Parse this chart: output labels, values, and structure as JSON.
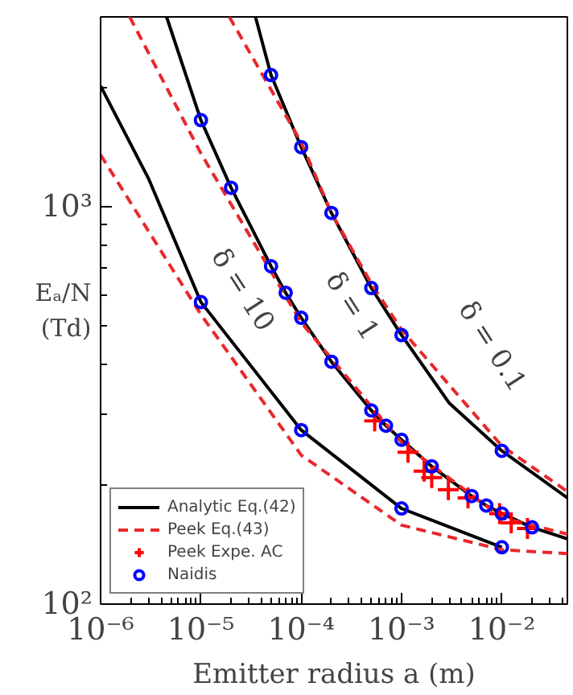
{
  "chart_data": {
    "type": "line",
    "xlabel": "Emitter radius a (m)",
    "ylabel": "Eₐ/N (Td)",
    "log": "xy",
    "grid": false,
    "legend": "bottom left",
    "xlim": [
      1e-06,
      0.045
    ],
    "ylim": [
      100,
      3000
    ],
    "xticks": [
      {
        "value": 1e-06,
        "label": "10⁻⁶"
      },
      {
        "value": 1e-05,
        "label": "10⁻⁵"
      },
      {
        "value": 0.0001,
        "label": "10⁻⁴"
      },
      {
        "value": 0.001,
        "label": "10⁻³"
      },
      {
        "value": 0.01,
        "label": "10⁻²"
      }
    ],
    "yticks": [
      {
        "value": 100,
        "label": "10²"
      },
      {
        "value": 1000,
        "label": "10³"
      }
    ],
    "series": [
      {
        "name": "Analytic Eq.(42)",
        "line_style": "solid",
        "color": "#000000",
        "x": [
          1e-06,
          3e-06,
          1e-05,
          0.0001,
          0.001,
          0.01
        ],
        "values": [
          2010,
          1177,
          575,
          274,
          174,
          139
        ]
      },
      {
        "line_style": "solid",
        "color": "#000000",
        "x": [
          4.55e-06,
          1e-05,
          2e-05,
          5e-05,
          7e-05,
          0.0001,
          0.0002,
          0.0005,
          0.0007,
          0.001,
          0.002,
          0.005,
          0.007,
          0.01,
          0.02,
          0.045
        ],
        "values": [
          3000,
          1650,
          1115,
          708,
          607,
          525,
          407,
          307,
          281,
          259,
          222,
          187,
          177,
          169,
          156,
          146
        ]
      },
      {
        "line_style": "solid",
        "color": "#000000",
        "x": [
          3.5e-05,
          5e-05,
          0.0001,
          0.0002,
          0.0005,
          0.001,
          0.003,
          0.01,
          0.045
        ],
        "values": [
          3000,
          2142,
          1411,
          964,
          624,
          475,
          320,
          243,
          185
        ]
      },
      {
        "name": "Peek Eq.(43)",
        "type": "line",
        "line_style": "dashed",
        "color": "#e8282b",
        "x": [
          1e-06,
          1e-05,
          0.0001,
          0.001,
          0.01,
          0.045
        ],
        "values": [
          1349,
          535,
          237,
          158,
          137,
          134
        ]
      },
      {
        "type": "line",
        "line_style": "dashed",
        "color": "#e8282b",
        "x": [
          1.95e-06,
          1e-05,
          0.0001,
          0.001,
          0.01,
          0.045
        ],
        "values": [
          3000,
          1361,
          511,
          255,
          165,
          150
        ]
      },
      {
        "type": "line",
        "line_style": "dashed",
        "color": "#e8282b",
        "x": [
          1.92e-05,
          0.0001,
          0.0002,
          0.0005,
          0.001,
          0.01,
          0.045
        ],
        "values": [
          3000,
          1450,
          964,
          640,
          490,
          250,
          192
        ]
      },
      {
        "name": "Peek Expe. AC",
        "type": "scatter",
        "marker": "cross",
        "color": "#ff0000",
        "x": [
          0.00054,
          0.00116,
          0.00168,
          0.002,
          0.00293,
          0.0046,
          0.0095,
          0.0124,
          0.018
        ],
        "values": [
          289,
          241,
          216,
          208,
          194,
          185,
          169,
          160,
          155
        ]
      },
      {
        "name": "Naidis",
        "type": "scatter",
        "marker": "circle",
        "color": "#0000ff",
        "x": [
          1e-05,
          0.0001,
          0.001,
          0.01,
          1e-05,
          2e-05,
          5e-05,
          7e-05,
          0.0001,
          0.0002,
          0.0005,
          0.0007,
          0.001,
          0.002,
          0.005,
          0.007,
          0.01,
          0.02,
          5e-05,
          0.0001,
          0.0002,
          0.0005,
          0.001,
          0.01
        ],
        "values": [
          575,
          274,
          174,
          139,
          1650,
          1115,
          708,
          607,
          525,
          407,
          307,
          281,
          259,
          222,
          187,
          177,
          169,
          156,
          2142,
          1411,
          964,
          624,
          475,
          243
        ]
      }
    ],
    "annotations": [
      "δ = 10",
      "δ = 1",
      "δ = 0.1"
    ]
  }
}
